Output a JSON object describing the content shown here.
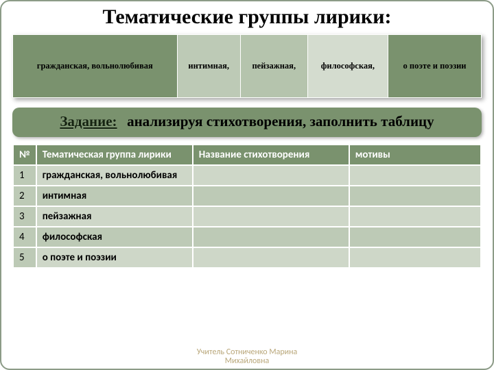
{
  "title": "Тематические группы лирики:",
  "topCells": [
    "гражданская, вольнолюбивая",
    "интимная,",
    "пейзажная,",
    "философская,",
    "о поэте и поэзии"
  ],
  "task": {
    "label": "Задание:",
    "text": "анализируя  стихотворения, заполнить таблицу"
  },
  "headers": {
    "num": "№",
    "group": "Тематическая группа лирики",
    "title": "Название стихотворения",
    "motiv": "мотивы"
  },
  "rows": [
    {
      "num": "1",
      "group": "гражданская, вольнолюбивая",
      "title": "",
      "motiv": ""
    },
    {
      "num": "2",
      "group": "интимная",
      "title": "",
      "motiv": ""
    },
    {
      "num": "3",
      "group": "пейзажная",
      "title": "",
      "motiv": ""
    },
    {
      "num": "4",
      "group": "философская",
      "title": "",
      "motiv": ""
    },
    {
      "num": "5",
      "group": "о поэте и поэзии",
      "title": "",
      "motiv": ""
    }
  ],
  "footer": {
    "line1": "Учитель Сотниченко Марина",
    "line2": "Михайловна"
  },
  "colors": {
    "olive_dark": "#7a926e",
    "olive_mid": "#bdcab6",
    "olive_light": "#ced7c8",
    "border": "#ffffff",
    "footer_text": "#b9a77a"
  }
}
